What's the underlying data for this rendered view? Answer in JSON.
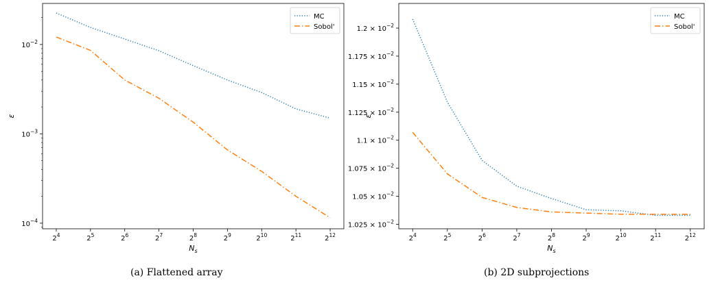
{
  "chart_data": [
    {
      "type": "line",
      "caption": "(a) Flattened array",
      "xlabel": "N_s",
      "ylabel": "ε",
      "x_scale": "log2",
      "y_scale": "log10",
      "x": [
        16,
        32,
        64,
        128,
        256,
        512,
        1024,
        2048,
        4096
      ],
      "xticks": [
        {
          "base": "2",
          "exp": "4"
        },
        {
          "base": "2",
          "exp": "5"
        },
        {
          "base": "2",
          "exp": "6"
        },
        {
          "base": "2",
          "exp": "7"
        },
        {
          "base": "2",
          "exp": "8"
        },
        {
          "base": "2",
          "exp": "9"
        },
        {
          "base": "2",
          "exp": "10"
        },
        {
          "base": "2",
          "exp": "11"
        },
        {
          "base": "2",
          "exp": "12"
        }
      ],
      "yticks": [
        {
          "value": 0.01,
          "base": "10",
          "exp": "−2"
        },
        {
          "value": 0.001,
          "base": "10",
          "exp": "−3"
        },
        {
          "value": 0.0001,
          "base": "10",
          "exp": "−4"
        }
      ],
      "ylim": [
        8.66e-05,
        0.0288
      ],
      "legend": "top-right",
      "series": [
        {
          "name": "MC",
          "style": "dotted",
          "color": "#1f77b4",
          "values": [
            0.0225,
            0.0155,
            0.0115,
            0.0085,
            0.0058,
            0.004,
            0.0029,
            0.0019,
            0.0015
          ]
        },
        {
          "name": "Sobol'",
          "style": "dashdot",
          "color": "#ff7f0e",
          "values": [
            0.0121,
            0.0086,
            0.004,
            0.0025,
            0.00135,
            0.00066,
            0.00038,
            0.0002,
            0.000115
          ]
        }
      ]
    },
    {
      "type": "line",
      "caption": "(b) 2D subprojections",
      "xlabel": "N_s",
      "ylabel": "ε",
      "x_scale": "log2",
      "y_scale": "linear",
      "x": [
        16,
        32,
        64,
        128,
        256,
        512,
        1024,
        2048,
        4096
      ],
      "xticks": [
        {
          "base": "2",
          "exp": "4"
        },
        {
          "base": "2",
          "exp": "5"
        },
        {
          "base": "2",
          "exp": "6"
        },
        {
          "base": "2",
          "exp": "7"
        },
        {
          "base": "2",
          "exp": "8"
        },
        {
          "base": "2",
          "exp": "9"
        },
        {
          "base": "2",
          "exp": "10"
        },
        {
          "base": "2",
          "exp": "11"
        },
        {
          "base": "2",
          "exp": "12"
        }
      ],
      "yticks": [
        {
          "value": 0.012,
          "mant": "1.2",
          "base": "10",
          "exp": "−2"
        },
        {
          "value": 0.01175,
          "mant": "1.175",
          "base": "10",
          "exp": "−2"
        },
        {
          "value": 0.0115,
          "mant": "1.15",
          "base": "10",
          "exp": "−2"
        },
        {
          "value": 0.01125,
          "mant": "1.125",
          "base": "10",
          "exp": "−2"
        },
        {
          "value": 0.011,
          "mant": "1.1",
          "base": "10",
          "exp": "−2"
        },
        {
          "value": 0.01075,
          "mant": "1.075",
          "base": "10",
          "exp": "−2"
        },
        {
          "value": 0.0105,
          "mant": "1.05",
          "base": "10",
          "exp": "−2"
        },
        {
          "value": 0.01025,
          "mant": "1.025",
          "base": "10",
          "exp": "−2"
        }
      ],
      "ylim": [
        0.01021,
        0.01222
      ],
      "legend": "top-right",
      "series": [
        {
          "name": "MC",
          "style": "dotted",
          "color": "#1f77b4",
          "values": [
            0.01208,
            0.01134,
            0.01082,
            0.01059,
            0.01048,
            0.01038,
            0.01037,
            0.01033,
            0.01033
          ]
        },
        {
          "name": "Sobol'",
          "style": "dashdot",
          "color": "#ff7f0e",
          "values": [
            0.01107,
            0.0107,
            0.01049,
            0.0104,
            0.01036,
            0.01035,
            0.01034,
            0.01034,
            0.01034
          ]
        }
      ]
    }
  ]
}
